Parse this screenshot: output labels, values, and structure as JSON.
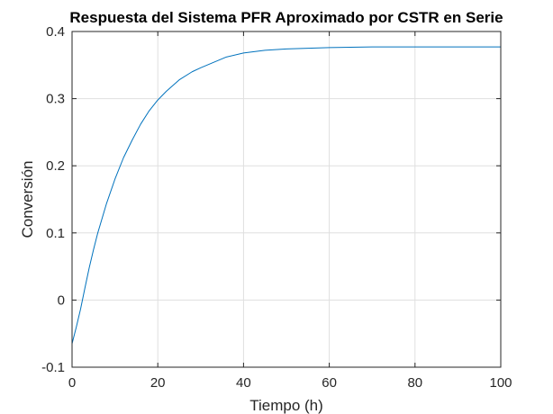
{
  "chart_data": {
    "type": "line",
    "title": "Respuesta del Sistema PFR Aproximado por CSTR en Serie",
    "xlabel": "Tiempo (h)",
    "ylabel": "Conversión",
    "xlim": [
      0,
      100
    ],
    "ylim": [
      -0.1,
      0.4
    ],
    "xticks": [
      0,
      20,
      40,
      60,
      80,
      100
    ],
    "xtick_labels": [
      "0",
      "20",
      "40",
      "60",
      "80",
      "100"
    ],
    "yticks": [
      -0.1,
      0,
      0.1,
      0.2,
      0.3,
      0.4
    ],
    "ytick_labels": [
      "-0.1",
      "0",
      "0.1",
      "0.2",
      "0.3",
      "0.4"
    ],
    "grid": true,
    "series": [
      {
        "color": "#0072bd",
        "x": [
          0,
          1,
          2,
          3,
          4,
          5,
          6,
          8,
          10,
          12,
          14,
          16,
          18,
          20,
          22,
          25,
          28,
          30,
          33,
          36,
          40,
          45,
          50,
          55,
          60,
          70,
          80,
          90,
          100
        ],
        "y": [
          -0.065,
          -0.04,
          -0.013,
          0.018,
          0.048,
          0.075,
          0.1,
          0.143,
          0.18,
          0.212,
          0.238,
          0.262,
          0.282,
          0.298,
          0.311,
          0.328,
          0.34,
          0.346,
          0.354,
          0.362,
          0.368,
          0.372,
          0.374,
          0.375,
          0.376,
          0.377,
          0.377,
          0.377,
          0.377
        ]
      }
    ]
  }
}
